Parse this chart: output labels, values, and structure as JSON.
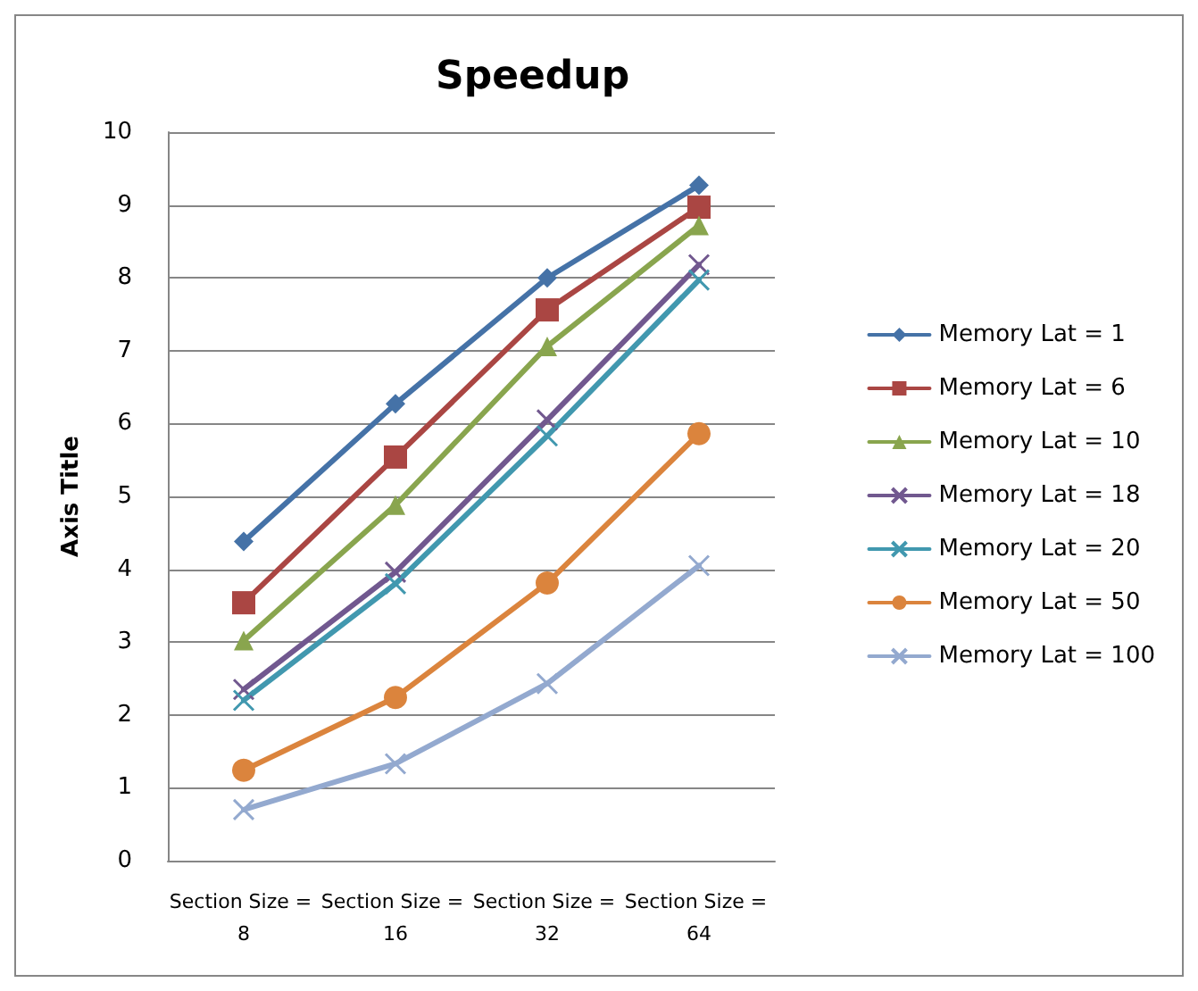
{
  "chart_data": {
    "type": "line",
    "title": "Speedup",
    "ylabel": "Axis Title",
    "categories": [
      "Section Size = 8",
      "Section Size = 16",
      "Section Size = 32",
      "Section Size = 64"
    ],
    "series": [
      {
        "name": "Memory Lat = 1",
        "color": "#4572a7",
        "marker": "diamond",
        "values": [
          4.38,
          6.27,
          8.0,
          9.27
        ]
      },
      {
        "name": "Memory Lat = 6",
        "color": "#aa4643",
        "marker": "square",
        "values": [
          3.54,
          5.54,
          7.56,
          8.97
        ]
      },
      {
        "name": "Memory Lat = 10",
        "color": "#89a54e",
        "marker": "triangle",
        "values": [
          3.02,
          4.88,
          7.06,
          8.72
        ]
      },
      {
        "name": "Memory Lat = 18",
        "color": "#71588f",
        "marker": "cross",
        "values": [
          2.35,
          3.96,
          6.05,
          8.18
        ]
      },
      {
        "name": "Memory Lat = 20",
        "color": "#4198af",
        "marker": "cross",
        "values": [
          2.2,
          3.8,
          5.83,
          7.97
        ]
      },
      {
        "name": "Memory Lat = 50",
        "color": "#db843d",
        "marker": "circle",
        "values": [
          1.24,
          2.24,
          3.81,
          5.86
        ]
      },
      {
        "name": "Memory Lat = 100",
        "color": "#93a9cf",
        "marker": "cross",
        "values": [
          0.7,
          1.33,
          2.43,
          4.05
        ]
      }
    ],
    "ylim": [
      0,
      10
    ],
    "yticks": [
      0,
      1,
      2,
      3,
      4,
      5,
      6,
      7,
      8,
      9,
      10
    ],
    "grid": "y",
    "legend": "right"
  }
}
